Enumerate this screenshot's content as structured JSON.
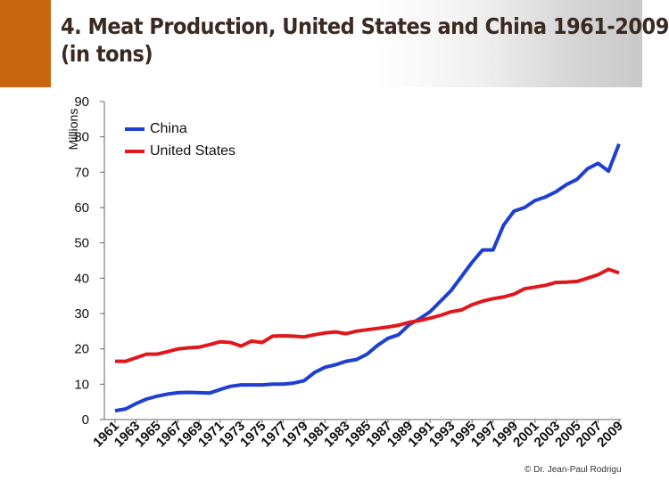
{
  "header": {
    "title_line1": "4. Meat Production, United States and China 1961-2009",
    "title_line2": "(in tons)"
  },
  "footer": {
    "copyright": "© Dr. Jean-Paul Rodrigu"
  },
  "colors": {
    "china": "#1f3fd1",
    "us": "#e0171b",
    "accent": "#c8650f"
  },
  "chart_data": {
    "type": "line",
    "title": "4. Meat Production, United States and China 1961-2009 (in tons)",
    "xlabel": "",
    "ylabel": "Millions",
    "ylim": [
      0,
      90
    ],
    "yticks": [
      0,
      10,
      20,
      30,
      40,
      50,
      60,
      70,
      80,
      90
    ],
    "grid": false,
    "legend": "top-left",
    "x": [
      1961,
      1962,
      1963,
      1964,
      1965,
      1966,
      1967,
      1968,
      1969,
      1970,
      1971,
      1972,
      1973,
      1974,
      1975,
      1976,
      1977,
      1978,
      1979,
      1980,
      1981,
      1982,
      1983,
      1984,
      1985,
      1986,
      1987,
      1988,
      1989,
      1990,
      1991,
      1992,
      1993,
      1994,
      1995,
      1996,
      1997,
      1998,
      1999,
      2000,
      2001,
      2002,
      2003,
      2004,
      2005,
      2006,
      2007,
      2008,
      2009
    ],
    "xtick_labels": [
      "1961",
      "1963",
      "1965",
      "1967",
      "1969",
      "1971",
      "1973",
      "1975",
      "1977",
      "1979",
      "1981",
      "1983",
      "1985",
      "1987",
      "1989",
      "1991",
      "1993",
      "1995",
      "1997",
      "1999",
      "2001",
      "2003",
      "2005",
      "2007",
      "2009"
    ],
    "series": [
      {
        "name": "China",
        "values": [
          2.5,
          3.0,
          4.5,
          5.8,
          6.6,
          7.2,
          7.6,
          7.7,
          7.6,
          7.5,
          8.5,
          9.4,
          9.8,
          9.8,
          9.8,
          10.0,
          10.0,
          10.3,
          11.0,
          13.3,
          14.8,
          15.5,
          16.5,
          17.0,
          18.5,
          21.0,
          23.0,
          24.0,
          26.8,
          28.5,
          30.5,
          33.5,
          36.5,
          40.5,
          44.5,
          48.0,
          48.0,
          55.0,
          59.0,
          60.0,
          62.0,
          63.0,
          64.5,
          66.5,
          68.0,
          71.0,
          72.5,
          70.3,
          78.0
        ]
      },
      {
        "name": "United States",
        "values": [
          16.5,
          16.5,
          17.5,
          18.5,
          18.5,
          19.2,
          20.0,
          20.3,
          20.5,
          21.2,
          22.0,
          21.8,
          20.8,
          22.2,
          21.8,
          23.6,
          23.7,
          23.6,
          23.4,
          24.0,
          24.5,
          24.8,
          24.3,
          25.0,
          25.4,
          25.8,
          26.2,
          26.7,
          27.5,
          28.0,
          28.7,
          29.5,
          30.5,
          31.0,
          32.5,
          33.5,
          34.2,
          34.7,
          35.5,
          37.0,
          37.5,
          38.0,
          38.8,
          38.9,
          39.1,
          40.0,
          41.0,
          42.5,
          41.5
        ]
      }
    ]
  }
}
